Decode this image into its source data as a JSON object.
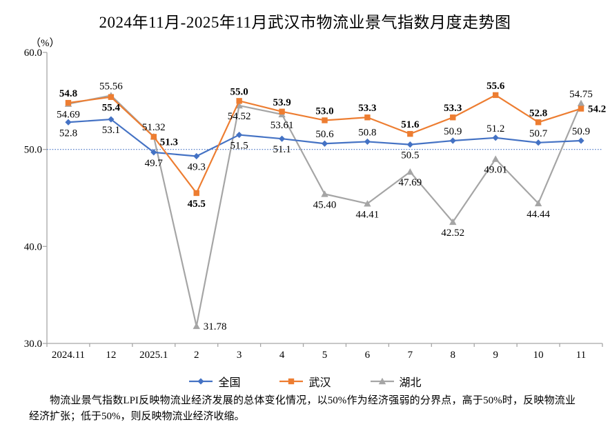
{
  "chart_data": {
    "type": "line",
    "title": "2024年11月-2025年11月武汉市物流业景气指数月度走势图",
    "unit_label": "（%）",
    "categories": [
      "2024.11",
      "12",
      "2025.1",
      "2",
      "3",
      "4",
      "5",
      "6",
      "7",
      "8",
      "9",
      "10",
      "11"
    ],
    "y_axis": {
      "min": 30,
      "max": 60,
      "tick_values": [
        60,
        50,
        40,
        30
      ],
      "tick_labels": [
        "60.0",
        "50.0",
        "40.0",
        "30.0"
      ]
    },
    "reference_line": {
      "value": 50
    },
    "grid": "off",
    "legend_position": "bottom",
    "axis_color": "#a6a6a6",
    "series": [
      {
        "id": "hubei",
        "name": "湖北",
        "color": "#a5a5a5",
        "marker": "triangle",
        "bold_labels": false,
        "values": [
          54.69,
          55.56,
          51.32,
          31.78,
          54.52,
          53.61,
          45.4,
          44.41,
          47.69,
          42.52,
          49.01,
          44.44,
          54.75
        ],
        "labels": [
          "54.69",
          "55.56",
          "51.32",
          "31.78",
          "54.52",
          "53.61",
          "45.40",
          "44.41",
          "47.69",
          "42.52",
          "49.01",
          "44.44",
          "54.75"
        ],
        "label_pos": [
          "below",
          "above",
          "above",
          "right",
          "below",
          "below",
          "below",
          "below",
          "below",
          "below",
          "below",
          "below",
          "above"
        ]
      },
      {
        "id": "china",
        "name": "全国",
        "color": "#4472c4",
        "marker": "diamond",
        "bold_labels": false,
        "values": [
          52.8,
          53.1,
          49.7,
          49.3,
          51.5,
          51.1,
          50.6,
          50.8,
          50.5,
          50.9,
          51.2,
          50.7,
          50.9
        ],
        "labels": [
          "52.8",
          "53.1",
          "49.7",
          "49.3",
          "51.5",
          "51.1",
          "50.6",
          "50.8",
          "50.5",
          "50.9",
          "51.2",
          "50.7",
          "50.9"
        ],
        "label_pos": [
          "below",
          "below",
          "below",
          "below",
          "below",
          "below",
          "above",
          "above",
          "below",
          "above",
          "above",
          "above",
          "above"
        ]
      },
      {
        "id": "wuhan",
        "name": "武汉",
        "color": "#ed7d31",
        "marker": "square",
        "bold_labels": true,
        "values": [
          54.8,
          55.4,
          51.3,
          45.5,
          55.0,
          53.9,
          53.0,
          53.3,
          51.6,
          53.3,
          55.6,
          52.8,
          54.2
        ],
        "labels": [
          "54.8",
          "55.4",
          "51.3",
          "45.5",
          "55.0",
          "53.9",
          "53.0",
          "53.3",
          "51.6",
          "53.3",
          "55.6",
          "52.8",
          "54.2"
        ],
        "label_pos": [
          "above",
          "below",
          "below-right",
          "below",
          "above",
          "above",
          "above",
          "above",
          "above",
          "above",
          "above",
          "above",
          "right"
        ]
      }
    ],
    "legend_order": [
      "china",
      "wuhan",
      "hubei"
    ]
  },
  "footer": {
    "text": "物流业景气指数LPI反映物流业经济发展的总体变化情况，以50%作为经济强弱的分界点，高于50%时，反映物流业经济扩张；低于50%，则反映物流业经济收缩。"
  }
}
